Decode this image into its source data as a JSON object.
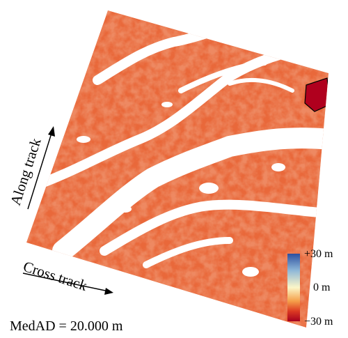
{
  "labels": {
    "along_track": "Along track",
    "cross_track": "Cross track",
    "medad": "MedAD = 20.000 m"
  },
  "colorbar": {
    "max_label": "+30 m",
    "mid_label": "0 m",
    "min_label": "−30 m"
  }
}
